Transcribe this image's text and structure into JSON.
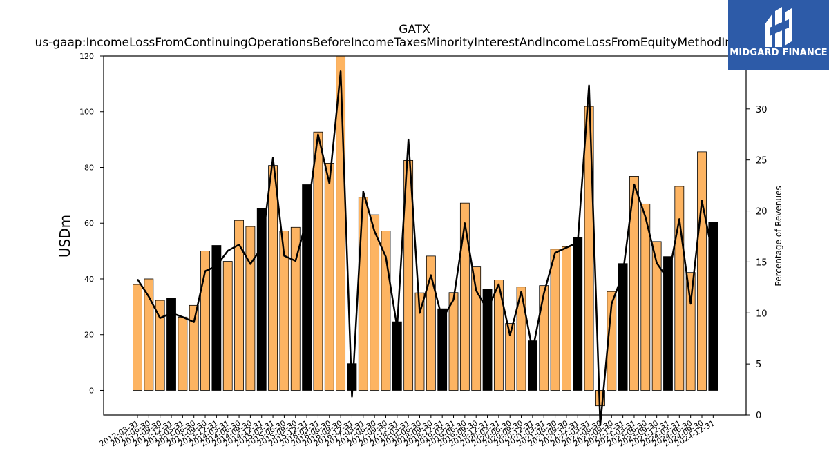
{
  "chart_data": {
    "type": "bar",
    "title": "GATX",
    "subtitle": "us-gaap:IncomeLossFromContinuingOperationsBeforeIncomeTaxesMinorityInterestAndIncomeLossFromEquityMethodInvestments",
    "ylabel": "USDm",
    "y2label": "Percentage of Revenues",
    "ylim": [
      -8.8,
      120
    ],
    "y2lim": [
      0,
      35.2
    ],
    "yticks": [
      0,
      20,
      40,
      60,
      80,
      100,
      120
    ],
    "y2ticks": [
      0,
      5,
      10,
      15,
      20,
      25,
      30
    ],
    "categories": [
      "2012-03-31",
      "2012-06-30",
      "2012-09-30",
      "2012-12-31",
      "2013-03-31",
      "2013-06-30",
      "2013-09-30",
      "2013-12-31",
      "2014-03-31",
      "2014-06-30",
      "2014-09-30",
      "2014-12-31",
      "2015-03-31",
      "2015-06-30",
      "2015-09-30",
      "2015-12-31",
      "2016-03-31",
      "2016-06-30",
      "2016-09-30",
      "2016-12-31",
      "2017-03-31",
      "2017-06-30",
      "2017-09-30",
      "2017-12-31",
      "2018-03-31",
      "2018-06-30",
      "2018-09-30",
      "2018-12-31",
      "2019-03-31",
      "2019-06-30",
      "2019-09-30",
      "2019-12-31",
      "2020-03-31",
      "2020-06-30",
      "2020-09-30",
      "2020-12-31",
      "2021-03-31",
      "2021-06-30",
      "2021-09-30",
      "2021-12-31",
      "2022-03-31",
      "2022-06-30",
      "2022-09-30",
      "2022-12-31",
      "2023-03-31",
      "2023-06-30",
      "2023-09-30",
      "2023-12-31",
      "2024-03-31",
      "2024-06-30",
      "2024-09-30",
      "2024-12-31"
    ],
    "series": [
      {
        "values": [
          38,
          40,
          32.3,
          33,
          26.3,
          30.5,
          50,
          52,
          46.3,
          61,
          58.8,
          65.2,
          80.7,
          57.2,
          58.5,
          73.8,
          92.7,
          81.5,
          120,
          9.6,
          69.3,
          63,
          57.2,
          24.6,
          82.5,
          35,
          48.2,
          29.3,
          35.1,
          67.2,
          44.3,
          36.2,
          39.6,
          24,
          37.1,
          17.8,
          37.6,
          50.7,
          51.6,
          55,
          101.9,
          -5.5,
          35.5,
          45.5,
          76.8,
          66.9,
          53.4,
          48,
          73.2,
          42.3,
          85.6,
          60.4
        ],
        "colors": [
          "orange",
          "orange",
          "orange",
          "black",
          "orange",
          "orange",
          "orange",
          "black",
          "orange",
          "orange",
          "orange",
          "black",
          "orange",
          "orange",
          "orange",
          "black",
          "orange",
          "orange",
          "orange",
          "black",
          "orange",
          "orange",
          "orange",
          "black",
          "orange",
          "orange",
          "orange",
          "black",
          "orange",
          "orange",
          "orange",
          "black",
          "orange",
          "orange",
          "orange",
          "black",
          "orange",
          "orange",
          "orange",
          "black",
          "orange",
          "orange",
          "orange",
          "black",
          "orange",
          "orange",
          "orange",
          "black",
          "orange",
          "orange",
          "orange",
          "black"
        ]
      },
      {
        "values": [
          13.3,
          11.6,
          9.5,
          10,
          9.6,
          9.1,
          14.1,
          14.6,
          16.1,
          16.7,
          14.8,
          16.4,
          25.2,
          15.6,
          15.1,
          19.2,
          27.5,
          22.7,
          33.7,
          1.8,
          21.9,
          18,
          15.5,
          8.6,
          27,
          10,
          13.7,
          9.4,
          11.3,
          18.8,
          12.2,
          10.3,
          12.8,
          7.8,
          12.1,
          6.3,
          11.9,
          15.9,
          16.4,
          16.9,
          32.3,
          -1,
          10.9,
          13.8,
          22.6,
          19.4,
          14.9,
          13.3,
          19.2,
          10.9,
          21,
          15.5
        ]
      }
    ],
    "colors": {
      "orange": "#fdb462",
      "black": "#000000",
      "line": "#000000",
      "logo_bg": "#2d5ba8"
    },
    "grid": false
  },
  "logo": {
    "text": "MIDGARD FINANCE"
  }
}
